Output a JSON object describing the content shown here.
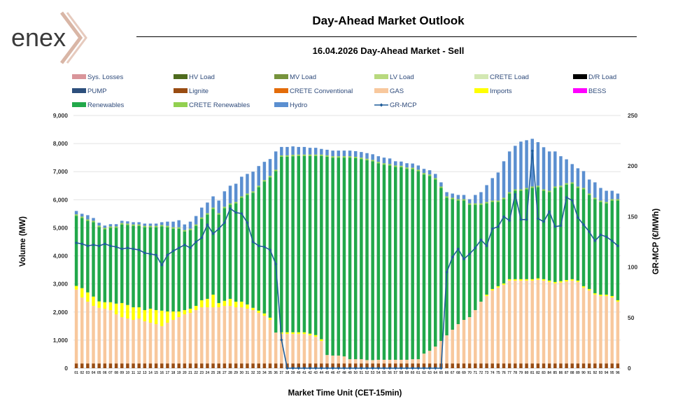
{
  "header": {
    "logo_text": "enex",
    "title": "Day-Ahead Market Outlook",
    "subtitle": "16.04.2026  Day-Ahead Market - Sell"
  },
  "chart_data": {
    "type": "bar",
    "stacked": true,
    "xlabel": "Market Time Unit (CET-15min)",
    "ylabel": "Volume (MW)",
    "y2label": "GR-MCP (€/MWh)",
    "ylim": [
      0,
      9000
    ],
    "y2lim": [
      0,
      250
    ],
    "yticks": [
      "0",
      "1,000",
      "2,000",
      "3,000",
      "4,000",
      "5,000",
      "6,000",
      "7,000",
      "8,000",
      "9,000"
    ],
    "y2ticks": [
      "0",
      "50",
      "100",
      "150",
      "200",
      "250"
    ],
    "grid": true,
    "legend_position": "top",
    "categories": [
      "01",
      "02",
      "03",
      "04",
      "05",
      "06",
      "07",
      "08",
      "09",
      "10",
      "11",
      "12",
      "13",
      "14",
      "15",
      "16",
      "17",
      "18",
      "19",
      "20",
      "21",
      "22",
      "23",
      "24",
      "25",
      "26",
      "27",
      "28",
      "29",
      "30",
      "31",
      "32",
      "33",
      "34",
      "35",
      "36",
      "37",
      "38",
      "39",
      "40",
      "41",
      "42",
      "43",
      "44",
      "45",
      "46",
      "47",
      "48",
      "49",
      "50",
      "51",
      "52",
      "53",
      "54",
      "55",
      "56",
      "57",
      "58",
      "59",
      "60",
      "61",
      "62",
      "63",
      "64",
      "65",
      "66",
      "67",
      "68",
      "69",
      "70",
      "71",
      "72",
      "73",
      "74",
      "75",
      "76",
      "77",
      "78",
      "79",
      "80",
      "81",
      "82",
      "83",
      "84",
      "85",
      "86",
      "87",
      "88",
      "89",
      "90",
      "91",
      "92",
      "93",
      "94",
      "95",
      "96"
    ],
    "legend": [
      {
        "name": "Sys. Losses",
        "color": "#d9959a",
        "kind": "box"
      },
      {
        "name": "HV Load",
        "color": "#4e6b1e",
        "kind": "box"
      },
      {
        "name": "MV Load",
        "color": "#76933c",
        "kind": "box"
      },
      {
        "name": "LV Load",
        "color": "#b8d97e",
        "kind": "box"
      },
      {
        "name": "CRETE Load",
        "color": "#d3e8b3",
        "kind": "box"
      },
      {
        "name": "D/R Load",
        "color": "#000000",
        "kind": "box"
      },
      {
        "name": "PUMP",
        "color": "#2d4f7c",
        "kind": "box"
      },
      {
        "name": "Lignite",
        "color": "#994c12",
        "kind": "box"
      },
      {
        "name": "CRETE Conventional",
        "color": "#e36c0a",
        "kind": "box"
      },
      {
        "name": "GAS",
        "color": "#f8c89d",
        "kind": "box"
      },
      {
        "name": "Imports",
        "color": "#ffff00",
        "kind": "box"
      },
      {
        "name": "BESS",
        "color": "#ff00ff",
        "kind": "box"
      },
      {
        "name": "Renewables",
        "color": "#21a84a",
        "kind": "box"
      },
      {
        "name": "CRETE Renewables",
        "color": "#92d050",
        "kind": "box"
      },
      {
        "name": "Hydro",
        "color": "#5b8fd0",
        "kind": "box"
      },
      {
        "name": "GR-MCP",
        "color": "#1f5d99",
        "kind": "line"
      }
    ],
    "series": [
      {
        "name": "Lignite",
        "color": "#994c12",
        "values": [
          170,
          170,
          170,
          170,
          170,
          170,
          170,
          170,
          170,
          170,
          170,
          170,
          170,
          170,
          170,
          170,
          170,
          170,
          170,
          170,
          170,
          170,
          170,
          170,
          170,
          170,
          170,
          170,
          170,
          170,
          170,
          170,
          170,
          170,
          170,
          170,
          170,
          170,
          170,
          170,
          170,
          170,
          170,
          170,
          170,
          170,
          170,
          170,
          170,
          170,
          170,
          170,
          170,
          170,
          170,
          170,
          170,
          170,
          170,
          170,
          170,
          170,
          170,
          170,
          170,
          170,
          170,
          170,
          170,
          170,
          170,
          170,
          170,
          170,
          170,
          170,
          170,
          170,
          170,
          170,
          170,
          170,
          170,
          170,
          170,
          170,
          170,
          170,
          170,
          170,
          170,
          170,
          170,
          170,
          170,
          170
        ]
      },
      {
        "name": "GAS",
        "color": "#f8c89d",
        "values": [
          2630,
          2350,
          2200,
          2050,
          1980,
          1950,
          1900,
          1750,
          1650,
          1600,
          1550,
          1600,
          1500,
          1450,
          1400,
          1330,
          1450,
          1550,
          1650,
          1750,
          1800,
          1900,
          2000,
          2000,
          2000,
          2000,
          2050,
          2050,
          2000,
          2000,
          1950,
          1900,
          1800,
          1700,
          1550,
          1100,
          1050,
          1050,
          1050,
          1050,
          1050,
          1000,
          950,
          800,
          300,
          280,
          280,
          250,
          150,
          150,
          150,
          120,
          120,
          130,
          130,
          130,
          130,
          130,
          130,
          150,
          150,
          350,
          450,
          600,
          800,
          1000,
          1200,
          1400,
          1550,
          1650,
          1900,
          2200,
          2400,
          2600,
          2700,
          2800,
          2950,
          2950,
          2950,
          2950,
          2950,
          2980,
          2950,
          2900,
          2850,
          2880,
          2920,
          2950,
          2900,
          2700,
          2600,
          2450,
          2400,
          2400,
          2350,
          2200
        ]
      },
      {
        "name": "Imports",
        "color": "#ffff00",
        "values": [
          130,
          330,
          330,
          330,
          230,
          230,
          280,
          380,
          500,
          480,
          450,
          400,
          400,
          500,
          500,
          550,
          400,
          300,
          200,
          150,
          150,
          150,
          250,
          300,
          450,
          150,
          180,
          250,
          200,
          200,
          150,
          80,
          80,
          80,
          80,
          0,
          60,
          60,
          60,
          60,
          60,
          60,
          60,
          60,
          0,
          0,
          0,
          0,
          0,
          0,
          0,
          0,
          0,
          0,
          0,
          0,
          0,
          0,
          0,
          0,
          0,
          0,
          0,
          0,
          0,
          0,
          0,
          0,
          0,
          0,
          0,
          0,
          50,
          50,
          50,
          50,
          50,
          50,
          50,
          50,
          50,
          50,
          50,
          50,
          50,
          50,
          50,
          50,
          50,
          50,
          50,
          50,
          50,
          50,
          50,
          50
        ]
      },
      {
        "name": "Renewables",
        "color": "#21a84a",
        "values": [
          2500,
          2500,
          2550,
          2650,
          2650,
          2600,
          2650,
          2700,
          2800,
          2850,
          2900,
          2900,
          2950,
          2900,
          2950,
          3000,
          3000,
          2950,
          2950,
          2800,
          2800,
          2850,
          2900,
          3000,
          3050,
          3150,
          3300,
          3350,
          3500,
          3700,
          3900,
          4100,
          4400,
          4700,
          5000,
          5750,
          6250,
          6250,
          6270,
          6280,
          6280,
          6330,
          6380,
          6530,
          7060,
          7050,
          7050,
          7080,
          7180,
          7160,
          7130,
          7120,
          7080,
          7000,
          6950,
          6920,
          6870,
          6860,
          6800,
          6770,
          6700,
          6380,
          6230,
          5950,
          5450,
          4900,
          4650,
          4400,
          4250,
          4000,
          3750,
          3450,
          3250,
          3100,
          3000,
          3000,
          3050,
          3150,
          3150,
          3200,
          3250,
          3250,
          3150,
          3150,
          3350,
          3350,
          3400,
          3400,
          3300,
          3450,
          3350,
          3350,
          3300,
          3250,
          3400,
          3550
        ]
      },
      {
        "name": "CRETE Renewables",
        "color": "#92d050",
        "values": [
          50,
          50,
          50,
          50,
          50,
          50,
          50,
          50,
          50,
          50,
          50,
          50,
          50,
          50,
          50,
          50,
          50,
          50,
          50,
          50,
          50,
          50,
          50,
          50,
          50,
          50,
          50,
          50,
          50,
          50,
          50,
          50,
          50,
          50,
          50,
          50,
          50,
          50,
          50,
          50,
          50,
          50,
          50,
          50,
          50,
          50,
          50,
          50,
          50,
          50,
          50,
          50,
          50,
          50,
          50,
          50,
          50,
          50,
          50,
          50,
          50,
          50,
          50,
          50,
          50,
          50,
          50,
          50,
          50,
          50,
          50,
          50,
          50,
          50,
          50,
          50,
          50,
          50,
          50,
          50,
          50,
          50,
          50,
          50,
          50,
          50,
          50,
          50,
          50,
          50,
          50,
          50,
          50,
          50,
          50,
          50
        ]
      },
      {
        "name": "Hydro",
        "color": "#5b8fd0",
        "values": [
          120,
          100,
          150,
          100,
          100,
          80,
          80,
          80,
          80,
          80,
          80,
          80,
          80,
          80,
          80,
          100,
          150,
          200,
          250,
          200,
          250,
          300,
          350,
          380,
          400,
          450,
          550,
          630,
          650,
          700,
          700,
          700,
          700,
          650,
          600,
          650,
          300,
          300,
          300,
          270,
          270,
          240,
          240,
          200,
          200,
          200,
          200,
          200,
          200,
          200,
          200,
          200,
          200,
          200,
          200,
          200,
          150,
          150,
          150,
          150,
          150,
          150,
          150,
          150,
          150,
          150,
          150,
          150,
          150,
          150,
          300,
          400,
          600,
          800,
          1000,
          1300,
          1450,
          1550,
          1700,
          1700,
          1700,
          1550,
          1500,
          1400,
          1250,
          1050,
          850,
          650,
          650,
          600,
          500,
          550,
          450,
          400,
          300,
          200
        ]
      }
    ],
    "mcp": [
      124,
      123,
      121,
      122,
      121,
      123,
      121,
      120,
      118,
      119,
      118,
      117,
      114,
      113,
      112,
      102,
      112,
      116,
      119,
      122,
      119,
      125,
      129,
      142,
      133,
      138,
      144,
      158,
      154,
      153,
      144,
      125,
      121,
      120,
      117,
      103,
      28,
      0,
      0,
      0,
      0,
      0,
      0,
      0,
      0,
      0,
      0,
      0,
      0,
      0,
      0,
      0,
      0,
      0,
      0,
      0,
      0,
      0,
      0,
      0,
      0,
      0,
      0,
      0,
      0,
      95,
      110,
      118,
      108,
      113,
      119,
      127,
      121,
      138,
      140,
      150,
      146,
      172,
      147,
      147,
      215,
      148,
      145,
      155,
      140,
      141,
      169,
      166,
      149,
      142,
      135,
      126,
      132,
      130,
      126,
      121
    ]
  }
}
